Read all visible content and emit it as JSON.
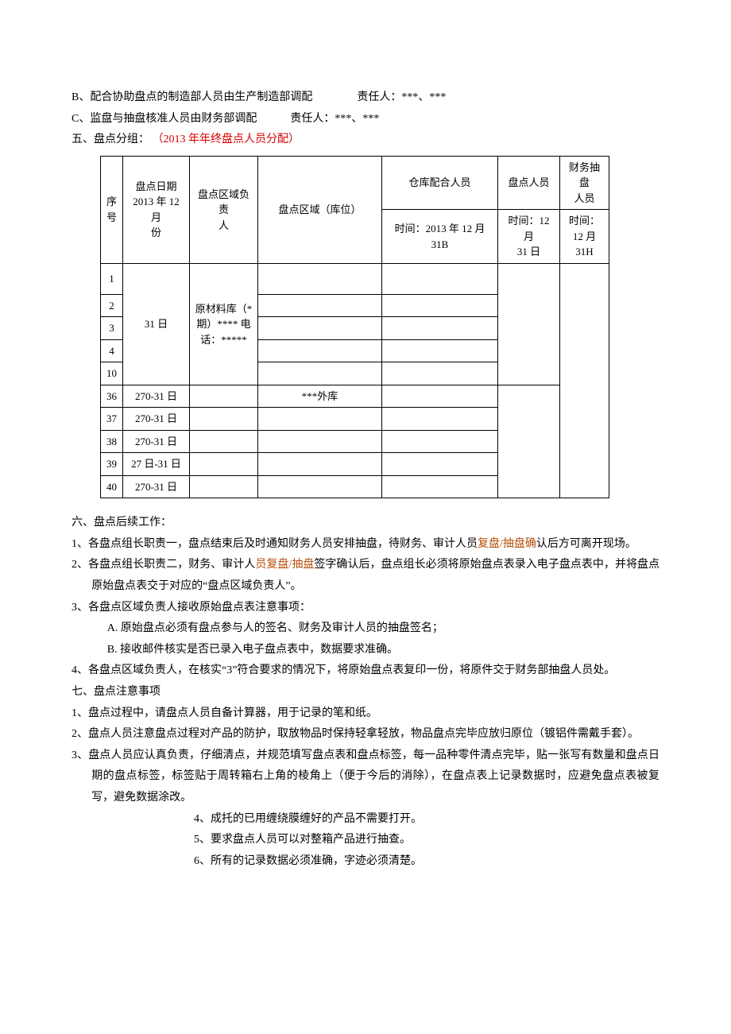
{
  "lines": {
    "b": "B、配合协助盘点的制造部人员由生产制造部调配　　　　责任人：***、***",
    "c": "C、监盘与抽盘核准人员由财务部调配　　　责任人：***、***",
    "five_prefix": "五、盘点分组：",
    "five_red": "（2013 年年终盘点人员分配）"
  },
  "table": {
    "h_seq": "序号",
    "h_date": "盘点日期\n2013 年 12 月\n份",
    "h_owner": "盘点区域负责\n人",
    "h_area": "盘点区域（库位）",
    "h_warep": "仓库配合人员",
    "h_inv": "盘点人员",
    "h_fin": "财务抽盘\n人员",
    "h2_warep": "时间：2013 年 12 月 31B",
    "h2_inv": "时间：12 月\n31 日",
    "h2_fin": "时间：\n12 月\n31H",
    "merged_date_31": "31 日",
    "merged_owner": "原材料库（*\n期）**** 电\n话：*****",
    "rows": [
      {
        "seq": "1",
        "date": "",
        "area": ""
      },
      {
        "seq": "2",
        "date": "",
        "area": ""
      },
      {
        "seq": "3",
        "date": "",
        "area": ""
      },
      {
        "seq": "4",
        "date": "",
        "area": ""
      },
      {
        "seq": "10",
        "date": "",
        "area": ""
      },
      {
        "seq": "36",
        "date": "270-31 日",
        "area": "***外库"
      },
      {
        "seq": "37",
        "date": "270-31 日",
        "area": ""
      },
      {
        "seq": "38",
        "date": "270-31 日",
        "area": ""
      },
      {
        "seq": "39",
        "date": "27 日-31 日",
        "area": ""
      },
      {
        "seq": "40",
        "date": "270-31 日",
        "area": ""
      }
    ]
  },
  "six": {
    "title": "六、盘点后续工作：",
    "p1a": "1、各盘点组长职责一，盘点结束后及时通知财务人员安排抽盘，待财务、审计人员",
    "p1b": "复盘/抽盘确",
    "p1c": "认后方可离开现场。",
    "p2a": "2、各盘点组长职责二，财务、审计人",
    "p2b": "员复盘/抽盘",
    "p2c": "签字确认后，盘点组长必须将原始盘点表录入电子盘点表中，并将盘点原始盘点表交于对应的“盘点区域负责人”。",
    "p3": "3、各盘点区域负责人接收原始盘点表注意事项：",
    "p3a": "A. 原始盘点必须有盘点参与人的签名、财务及审计人员的抽盘签名；",
    "p3b": "B. 接收邮件核实是否已录入电子盘点表中，数据要求准确。",
    "p4": "4、各盘点区域负责人，在核实“3”符合要求的情况下，将原始盘点表复印一份，将原件交于财务部抽盘人员处。"
  },
  "seven": {
    "title": "七、盘点注意事项",
    "p1": "1、盘点过程中，请盘点人员自备计算器，用于记录的笔和纸。",
    "p2": "2、盘点人员注意盘点过程对产品的防护，取放物品时保持轻拿轻放，物品盘点完毕应放归原位（镀铝件需戴手套）。",
    "p3": "3、盘点人员应认真负责，仔细清点，并规范填写盘点表和盘点标签，每一品种零件清点完毕，贴一张写有数量和盘点日期的盘点标签，标签贴于周转箱右上角的棱角上（便于今后的消除），在盘点表上记录数据时，应避免盘点表被复写，避免数据涂改。",
    "p4": "4、成托的已用缠绕膜缠好的产品不需要打开。",
    "p5": "5、要求盘点人员可以对整箱产品进行抽查。",
    "p6": "6、所有的记录数据必须准确，字迹必须清楚。"
  }
}
